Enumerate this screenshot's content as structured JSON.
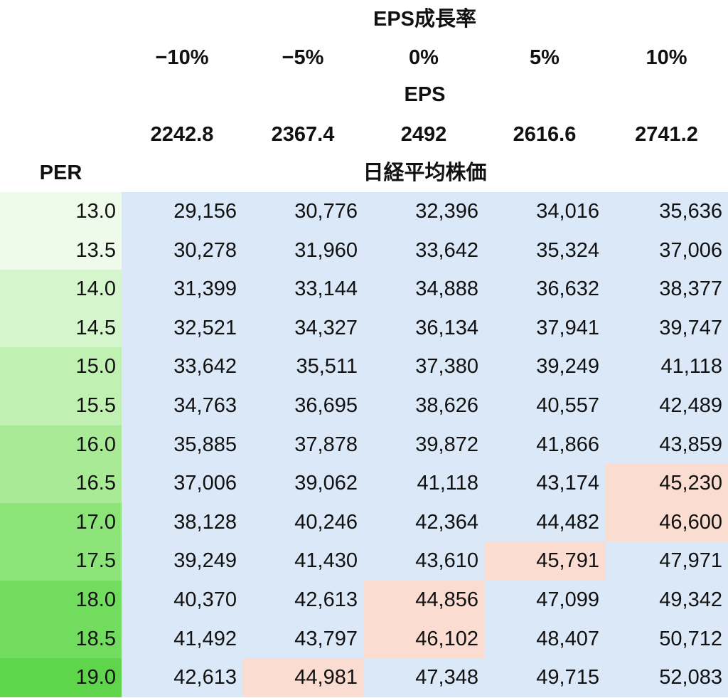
{
  "headers": {
    "growth_title": "EPS成長率",
    "eps_title": "EPS",
    "price_title": "日経平均株価",
    "per_label": "PER"
  },
  "growth_rates": [
    "−10%",
    "−5%",
    "0%",
    "5%",
    "10%"
  ],
  "eps_values": [
    "2242.8",
    "2367.4",
    "2492",
    "2616.6",
    "2741.2"
  ],
  "colors": {
    "per_gradient": [
      "#eefbea",
      "#d5f5cc",
      "#c0f0b2",
      "#a8ea96",
      "#8ce478",
      "#72dc5e",
      "#5ed54a"
    ],
    "table_bg": "#dbe8f7",
    "highlight": "#fbdcd0",
    "text": "#111111"
  },
  "rows": [
    {
      "per": "13.0",
      "values": [
        "29,156",
        "30,776",
        "32,396",
        "34,016",
        "35,636"
      ],
      "highlight": [
        false,
        false,
        false,
        false,
        false
      ]
    },
    {
      "per": "13.5",
      "values": [
        "30,278",
        "31,960",
        "33,642",
        "35,324",
        "37,006"
      ],
      "highlight": [
        false,
        false,
        false,
        false,
        false
      ]
    },
    {
      "per": "14.0",
      "values": [
        "31,399",
        "33,144",
        "34,888",
        "36,632",
        "38,377"
      ],
      "highlight": [
        false,
        false,
        false,
        false,
        false
      ]
    },
    {
      "per": "14.5",
      "values": [
        "32,521",
        "34,327",
        "36,134",
        "37,941",
        "39,747"
      ],
      "highlight": [
        false,
        false,
        false,
        false,
        false
      ]
    },
    {
      "per": "15.0",
      "values": [
        "33,642",
        "35,511",
        "37,380",
        "39,249",
        "41,118"
      ],
      "highlight": [
        false,
        false,
        false,
        false,
        false
      ]
    },
    {
      "per": "15.5",
      "values": [
        "34,763",
        "36,695",
        "38,626",
        "40,557",
        "42,489"
      ],
      "highlight": [
        false,
        false,
        false,
        false,
        false
      ]
    },
    {
      "per": "16.0",
      "values": [
        "35,885",
        "37,878",
        "39,872",
        "41,866",
        "43,859"
      ],
      "highlight": [
        false,
        false,
        false,
        false,
        false
      ]
    },
    {
      "per": "16.5",
      "values": [
        "37,006",
        "39,062",
        "41,118",
        "43,174",
        "45,230"
      ],
      "highlight": [
        false,
        false,
        false,
        false,
        true
      ]
    },
    {
      "per": "17.0",
      "values": [
        "38,128",
        "40,246",
        "42,364",
        "44,482",
        "46,600"
      ],
      "highlight": [
        false,
        false,
        false,
        false,
        true
      ]
    },
    {
      "per": "17.5",
      "values": [
        "39,249",
        "41,430",
        "43,610",
        "45,791",
        "47,971"
      ],
      "highlight": [
        false,
        false,
        false,
        true,
        false
      ]
    },
    {
      "per": "18.0",
      "values": [
        "40,370",
        "42,613",
        "44,856",
        "47,099",
        "49,342"
      ],
      "highlight": [
        false,
        false,
        true,
        false,
        false
      ]
    },
    {
      "per": "18.5",
      "values": [
        "41,492",
        "43,797",
        "46,102",
        "48,407",
        "50,712"
      ],
      "highlight": [
        false,
        false,
        true,
        false,
        false
      ]
    },
    {
      "per": "19.0",
      "values": [
        "42,613",
        "44,981",
        "47,348",
        "49,715",
        "52,083"
      ],
      "highlight": [
        false,
        true,
        false,
        false,
        false
      ]
    }
  ]
}
